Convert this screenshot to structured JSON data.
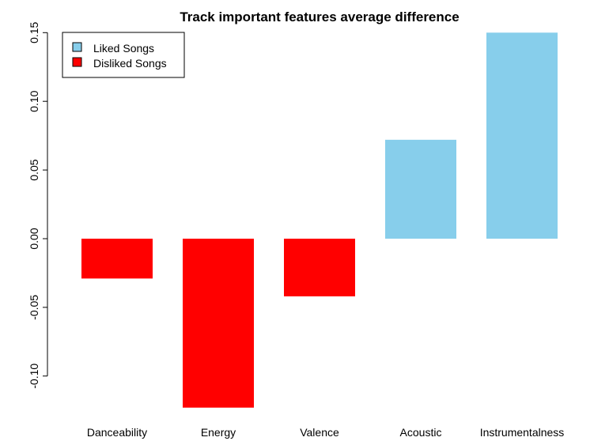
{
  "chart_data": {
    "type": "bar",
    "title": "Track important features average difference",
    "xlabel": "",
    "ylabel": "",
    "categories": [
      "Danceability",
      "Energy",
      "Valence",
      "Acoustic",
      "Instrumentalness"
    ],
    "values": [
      -0.029,
      -0.123,
      -0.042,
      0.072,
      0.15
    ],
    "bar_group": [
      "Disliked Songs",
      "Disliked Songs",
      "Disliked Songs",
      "Liked Songs",
      "Liked Songs"
    ],
    "ylim": [
      -0.125,
      0.15
    ],
    "yticks": [
      -0.1,
      -0.05,
      0.0,
      0.05,
      0.1,
      0.15
    ],
    "ytick_labels": [
      "-0.10",
      "-0.05",
      "0.00",
      "0.05",
      "0.10",
      "0.15"
    ],
    "grid": false,
    "legend": {
      "placement": "top-left",
      "entries": [
        {
          "label": "Liked Songs",
          "color": "#87CEEB"
        },
        {
          "label": "Disliked Songs",
          "color": "#FF0000"
        }
      ]
    },
    "colors": {
      "Liked Songs": "#87CEEB",
      "Disliked Songs": "#FF0000"
    }
  }
}
